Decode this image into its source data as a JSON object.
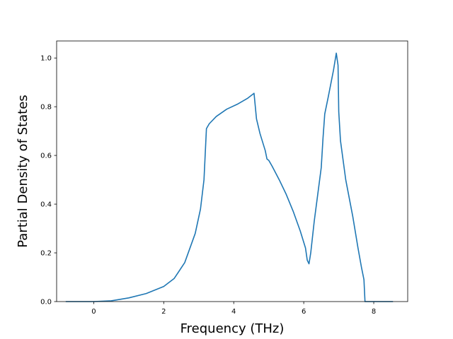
{
  "chart_data": {
    "type": "line",
    "title": "",
    "xlabel": "Frequency (THz)",
    "ylabel": "Partial Density of States",
    "xlim": [
      -1.06,
      8.97
    ],
    "ylim": [
      0.0,
      1.07
    ],
    "xticks": [
      0,
      2,
      4,
      6,
      8
    ],
    "yticks": [
      0.0,
      0.2,
      0.4,
      0.6,
      0.8,
      1.0
    ],
    "xtick_labels": [
      "0",
      "2",
      "4",
      "6",
      "8"
    ],
    "ytick_labels": [
      "0.0",
      "0.2",
      "0.4",
      "0.6",
      "0.8",
      "1.0"
    ],
    "grid": false,
    "legend": "none",
    "series": [
      {
        "color": "#1f77b4",
        "x": [
          -0.8,
          0.0,
          0.5,
          1.0,
          1.5,
          2.0,
          2.3,
          2.6,
          2.9,
          3.05,
          3.15,
          3.2,
          3.22,
          3.3,
          3.5,
          3.8,
          4.1,
          4.4,
          4.58,
          4.65,
          4.75,
          4.9,
          4.95,
          5.0,
          5.1,
          5.3,
          5.5,
          5.7,
          5.9,
          6.05,
          6.1,
          6.15,
          6.2,
          6.3,
          6.4,
          6.5,
          6.55,
          6.6,
          6.7,
          6.85,
          6.93,
          6.98,
          7.0,
          7.05,
          7.2,
          7.4,
          7.55,
          7.65,
          7.72,
          7.75,
          8.55
        ],
        "y": [
          0.0,
          0.0,
          0.003,
          0.015,
          0.033,
          0.062,
          0.095,
          0.16,
          0.28,
          0.38,
          0.5,
          0.65,
          0.71,
          0.73,
          0.76,
          0.79,
          0.81,
          0.835,
          0.855,
          0.75,
          0.69,
          0.62,
          0.585,
          0.58,
          0.555,
          0.5,
          0.44,
          0.37,
          0.29,
          0.22,
          0.17,
          0.155,
          0.2,
          0.33,
          0.44,
          0.55,
          0.67,
          0.77,
          0.84,
          0.95,
          1.02,
          0.97,
          0.78,
          0.66,
          0.5,
          0.35,
          0.22,
          0.14,
          0.09,
          0.0,
          0.0
        ]
      }
    ]
  }
}
